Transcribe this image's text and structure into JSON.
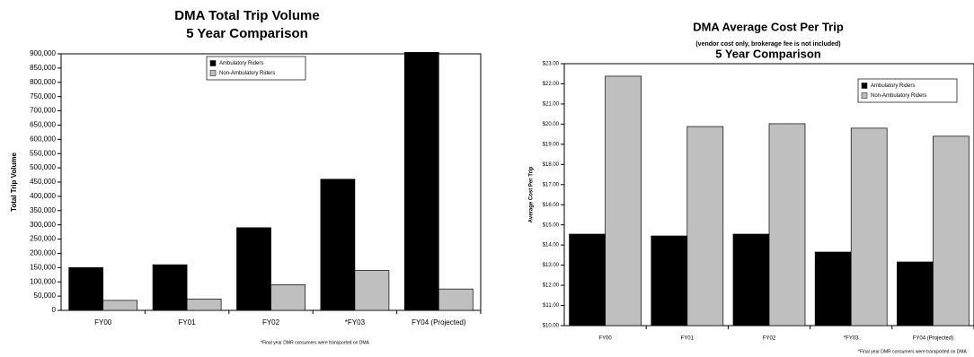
{
  "chart_data": [
    {
      "type": "bar",
      "title": "DMA Total Trip Volume",
      "subtitle": "5 Year Comparison",
      "y_label": "Total Trip Volume",
      "footnote": "*Final year DMR consumers were transported on DMA",
      "categories": [
        "FY00",
        "FY01",
        "FY02",
        "*FY03",
        "FY04 (Projected)"
      ],
      "series": [
        {
          "name": "Ambulatory Riders",
          "color": "#000000",
          "values": [
            150000,
            160000,
            290000,
            460000,
            905000
          ]
        },
        {
          "name": "Non-Ambulatory Riders",
          "color": "#bfbfbf",
          "values": [
            35000,
            40000,
            90000,
            140000,
            75000
          ]
        }
      ],
      "ylim": [
        0,
        900000
      ],
      "yticks": [
        0,
        {
          "value": 50000,
          "label": "50,000"
        },
        {
          "value": 100000,
          "label": "100,000"
        },
        {
          "value": 150000,
          "label": "150,000"
        },
        {
          "value": 200000,
          "label": "200,000"
        },
        {
          "value": 250000,
          "label": "250,000"
        },
        {
          "value": 300000,
          "label": "300,000"
        },
        {
          "value": 350000,
          "label": "350,000"
        },
        {
          "value": 400000,
          "label": "400,000"
        },
        {
          "value": 450000,
          "label": "450,000"
        },
        {
          "value": 500000,
          "label": "500,000"
        },
        {
          "value": 550000,
          "label": "550,000"
        },
        {
          "value": 600000,
          "label": "600,000"
        },
        {
          "value": 650000,
          "label": "650,000"
        },
        {
          "value": 700000,
          "label": "700,000"
        },
        {
          "value": 750000,
          "label": "750,000"
        },
        {
          "value": 800000,
          "label": "800,000"
        },
        {
          "value": 850000,
          "label": "850,000"
        },
        {
          "value": 900000,
          "label": "900,000"
        }
      ],
      "legend": "top-center"
    },
    {
      "type": "bar",
      "title": "DMA Average Cost Per Trip",
      "note": "(vendor cost only, brokerage fee is not included)",
      "subtitle": "5 Year Comparison",
      "y_label": "Average Cost Per Trip",
      "footnote": "*Final year DMR consumers were transported on DMA",
      "categories": [
        "FY00",
        "FY01",
        "FY02",
        "*FY03",
        "FY04 (Projected)"
      ],
      "series": [
        {
          "name": "Ambulatory Riders",
          "color": "#000000",
          "values": [
            14.54,
            14.45,
            14.54,
            13.65,
            13.16
          ]
        },
        {
          "name": "Non-Ambulatory Riders",
          "color": "#bfbfbf",
          "values": [
            22.38,
            19.88,
            20.02,
            19.8,
            19.4
          ]
        }
      ],
      "ylim": [
        10,
        23
      ],
      "yticks": [
        {
          "value": 10,
          "label": "$10.00"
        },
        {
          "value": 11,
          "label": "$11.00"
        },
        {
          "value": 12,
          "label": "$12.00"
        },
        {
          "value": 13,
          "label": "$13.00"
        },
        {
          "value": 14,
          "label": "$14.00"
        },
        {
          "value": 15,
          "label": "$15.00"
        },
        {
          "value": 16,
          "label": "$16.00"
        },
        {
          "value": 17,
          "label": "$17.00"
        },
        {
          "value": 18,
          "label": "$18.00"
        },
        {
          "value": 19,
          "label": "$19.00"
        },
        {
          "value": 20,
          "label": "$20.00"
        },
        {
          "value": 21,
          "label": "$21.00"
        },
        {
          "value": 22,
          "label": "$22.00"
        },
        {
          "value": 23,
          "label": "$23.00"
        }
      ],
      "legend": "top-right"
    }
  ]
}
